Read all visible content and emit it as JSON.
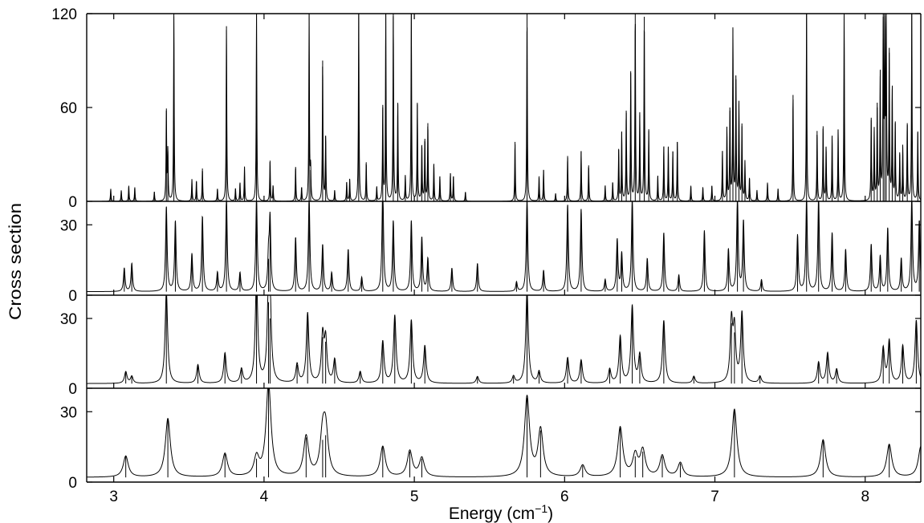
{
  "chart_data": {
    "type": "line",
    "layout": "stacked-panels",
    "xlabel": "Energy (cm",
    "xlabel_sup": "−1",
    "xlabel_close": ")",
    "ylabel": "Cross section",
    "xlim": [
      2.82,
      8.37
    ],
    "x_ticks": [
      3,
      4,
      5,
      6,
      7,
      8
    ],
    "x_tick_labels": [
      "3",
      "4",
      "5",
      "6",
      "7",
      "8"
    ],
    "grid": false,
    "panels": [
      {
        "ylim": [
          0,
          120
        ],
        "y_ticks": [
          0,
          60,
          120
        ],
        "y_tick_labels": [
          "0",
          "60",
          "120"
        ],
        "baseline": 0,
        "linewidth": 0.0025,
        "peaks": [
          [
            2.98,
            8
          ],
          [
            3.05,
            7
          ],
          [
            3.1,
            10
          ],
          [
            3.14,
            9
          ],
          [
            3.27,
            6
          ],
          [
            3.35,
            58
          ],
          [
            3.36,
            32
          ],
          [
            3.4,
            120
          ],
          [
            3.52,
            14
          ],
          [
            3.55,
            13
          ],
          [
            3.59,
            21
          ],
          [
            3.69,
            8
          ],
          [
            3.75,
            112
          ],
          [
            3.81,
            8
          ],
          [
            3.84,
            12
          ],
          [
            3.87,
            22
          ],
          [
            3.95,
            120
          ],
          [
            4.04,
            26
          ],
          [
            4.06,
            10
          ],
          [
            4.21,
            22
          ],
          [
            4.25,
            9
          ],
          [
            4.3,
            120
          ],
          [
            4.31,
            20
          ],
          [
            4.39,
            90
          ],
          [
            4.41,
            42
          ],
          [
            4.47,
            7
          ],
          [
            4.55,
            12
          ],
          [
            4.57,
            14
          ],
          [
            4.63,
            120
          ],
          [
            4.68,
            25
          ],
          [
            4.75,
            9
          ],
          [
            4.79,
            60
          ],
          [
            4.81,
            120
          ],
          [
            4.86,
            120
          ],
          [
            4.89,
            63
          ],
          [
            4.94,
            16
          ],
          [
            4.98,
            120
          ],
          [
            5.02,
            62
          ],
          [
            5.05,
            36
          ],
          [
            5.07,
            40
          ],
          [
            5.09,
            50
          ],
          [
            5.13,
            24
          ],
          [
            5.17,
            16
          ],
          [
            5.24,
            18
          ],
          [
            5.26,
            16
          ],
          [
            5.34,
            6
          ],
          [
            5.67,
            38
          ],
          [
            5.75,
            120
          ],
          [
            5.83,
            16
          ],
          [
            5.86,
            20
          ],
          [
            5.94,
            5
          ],
          [
            6.02,
            29
          ],
          [
            6.11,
            32
          ],
          [
            6.16,
            23
          ],
          [
            6.27,
            10
          ],
          [
            6.32,
            12
          ],
          [
            6.36,
            33
          ],
          [
            6.38,
            44
          ],
          [
            6.41,
            58
          ],
          [
            6.44,
            82
          ],
          [
            6.47,
            120
          ],
          [
            6.5,
            55
          ],
          [
            6.53,
            118
          ],
          [
            6.56,
            45
          ],
          [
            6.62,
            16
          ],
          [
            6.66,
            35
          ],
          [
            6.69,
            35
          ],
          [
            6.72,
            32
          ],
          [
            6.75,
            38
          ],
          [
            6.84,
            10
          ],
          [
            6.92,
            9
          ],
          [
            6.98,
            10
          ],
          [
            7.05,
            32
          ],
          [
            7.08,
            47
          ],
          [
            7.1,
            58
          ],
          [
            7.12,
            110
          ],
          [
            7.14,
            78
          ],
          [
            7.16,
            62
          ],
          [
            7.18,
            48
          ],
          [
            7.2,
            25
          ],
          [
            7.23,
            15
          ],
          [
            7.28,
            7
          ],
          [
            7.35,
            12
          ],
          [
            7.42,
            8
          ],
          [
            7.52,
            68
          ],
          [
            7.61,
            120
          ],
          [
            7.68,
            45
          ],
          [
            7.72,
            48
          ],
          [
            7.74,
            35
          ],
          [
            7.78,
            42
          ],
          [
            7.82,
            46
          ],
          [
            7.86,
            120
          ],
          [
            8.04,
            52
          ],
          [
            8.06,
            45
          ],
          [
            8.08,
            60
          ],
          [
            8.1,
            80
          ],
          [
            8.12,
            118
          ],
          [
            8.13,
            120
          ],
          [
            8.14,
            120
          ],
          [
            8.16,
            95
          ],
          [
            8.18,
            72
          ],
          [
            8.2,
            50
          ],
          [
            8.23,
            30
          ],
          [
            8.25,
            35
          ],
          [
            8.28,
            50
          ],
          [
            8.31,
            120
          ],
          [
            8.35,
            44
          ]
        ]
      },
      {
        "ylim": [
          0,
          40
        ],
        "y_ticks": [
          0,
          30
        ],
        "y_tick_labels": [
          "0",
          "30"
        ],
        "baseline": 1.5,
        "linewidth": 0.006,
        "peaks": [
          [
            3.07,
            10
          ],
          [
            3.12,
            12
          ],
          [
            3.35,
            36
          ],
          [
            3.41,
            30
          ],
          [
            3.52,
            16
          ],
          [
            3.59,
            32
          ],
          [
            3.69,
            8
          ],
          [
            3.75,
            40
          ],
          [
            3.84,
            8
          ],
          [
            3.95,
            40
          ],
          [
            4.03,
            14
          ],
          [
            4.04,
            30
          ],
          [
            4.21,
            23
          ],
          [
            4.3,
            40
          ],
          [
            4.39,
            20
          ],
          [
            4.45,
            8
          ],
          [
            4.56,
            18
          ],
          [
            4.65,
            6
          ],
          [
            4.79,
            46
          ],
          [
            4.86,
            30
          ],
          [
            4.98,
            30
          ],
          [
            5.05,
            23
          ],
          [
            5.09,
            14
          ],
          [
            5.25,
            10
          ],
          [
            5.42,
            12
          ],
          [
            5.68,
            4
          ],
          [
            5.75,
            40
          ],
          [
            5.86,
            9
          ],
          [
            6.02,
            37
          ],
          [
            6.11,
            35
          ],
          [
            6.27,
            5
          ],
          [
            6.35,
            22
          ],
          [
            6.38,
            16
          ],
          [
            6.45,
            40
          ],
          [
            6.55,
            14
          ],
          [
            6.66,
            25
          ],
          [
            6.76,
            7
          ],
          [
            6.93,
            26
          ],
          [
            7.09,
            18
          ],
          [
            7.15,
            40
          ],
          [
            7.19,
            30
          ],
          [
            7.31,
            5
          ],
          [
            7.55,
            24
          ],
          [
            7.61,
            40
          ],
          [
            7.69,
            40
          ],
          [
            7.78,
            25
          ],
          [
            7.87,
            18
          ],
          [
            8.04,
            20
          ],
          [
            8.1,
            15
          ],
          [
            8.15,
            27
          ],
          [
            8.24,
            14
          ],
          [
            8.31,
            40
          ],
          [
            8.36,
            30
          ]
        ]
      },
      {
        "ylim": [
          0,
          40
        ],
        "y_ticks": [
          0,
          30
        ],
        "y_tick_labels": [
          "0",
          "30"
        ],
        "baseline": 2,
        "linewidth": 0.01,
        "peaks": [
          [
            3.08,
            5
          ],
          [
            3.12,
            3
          ],
          [
            3.35,
            40
          ],
          [
            3.56,
            8
          ],
          [
            3.74,
            13
          ],
          [
            3.85,
            6
          ],
          [
            3.95,
            45
          ],
          [
            4.03,
            35
          ],
          [
            4.04,
            28
          ],
          [
            4.22,
            8
          ],
          [
            4.29,
            30
          ],
          [
            4.39,
            20
          ],
          [
            4.41,
            18
          ],
          [
            4.47,
            10
          ],
          [
            4.64,
            5
          ],
          [
            4.79,
            18
          ],
          [
            4.87,
            29
          ],
          [
            4.98,
            27
          ],
          [
            5.07,
            16
          ],
          [
            5.42,
            3
          ],
          [
            5.66,
            3
          ],
          [
            5.75,
            40
          ],
          [
            5.83,
            5
          ],
          [
            6.02,
            11
          ],
          [
            6.11,
            10
          ],
          [
            6.3,
            6
          ],
          [
            6.37,
            20
          ],
          [
            6.45,
            33
          ],
          [
            6.5,
            12
          ],
          [
            6.66,
            27
          ],
          [
            6.86,
            3
          ],
          [
            7.11,
            26
          ],
          [
            7.13,
            22
          ],
          [
            7.18,
            30
          ],
          [
            7.3,
            3
          ],
          [
            7.69,
            9
          ],
          [
            7.75,
            13
          ],
          [
            7.81,
            6
          ],
          [
            8.12,
            15
          ],
          [
            8.16,
            18
          ],
          [
            8.25,
            16
          ],
          [
            8.34,
            27
          ]
        ]
      },
      {
        "ylim": [
          0,
          40
        ],
        "y_ticks": [
          0,
          30
        ],
        "y_tick_labels": [
          "0",
          "30"
        ],
        "baseline": 2,
        "linewidth": 0.02,
        "peaks": [
          [
            3.08,
            9
          ],
          [
            3.36,
            25
          ],
          [
            3.74,
            10
          ],
          [
            3.95,
            8
          ],
          [
            4.03,
            40
          ],
          [
            4.28,
            17
          ],
          [
            4.39,
            16
          ],
          [
            4.41,
            18
          ],
          [
            4.79,
            13
          ],
          [
            4.97,
            11
          ],
          [
            5.05,
            8
          ],
          [
            5.75,
            34
          ],
          [
            5.84,
            20
          ],
          [
            6.12,
            5
          ],
          [
            6.37,
            21
          ],
          [
            6.47,
            9
          ],
          [
            6.52,
            11
          ],
          [
            6.65,
            9
          ],
          [
            6.77,
            6
          ],
          [
            7.13,
            29
          ],
          [
            7.72,
            16
          ],
          [
            8.16,
            14
          ],
          [
            8.37,
            13
          ]
        ]
      }
    ]
  }
}
